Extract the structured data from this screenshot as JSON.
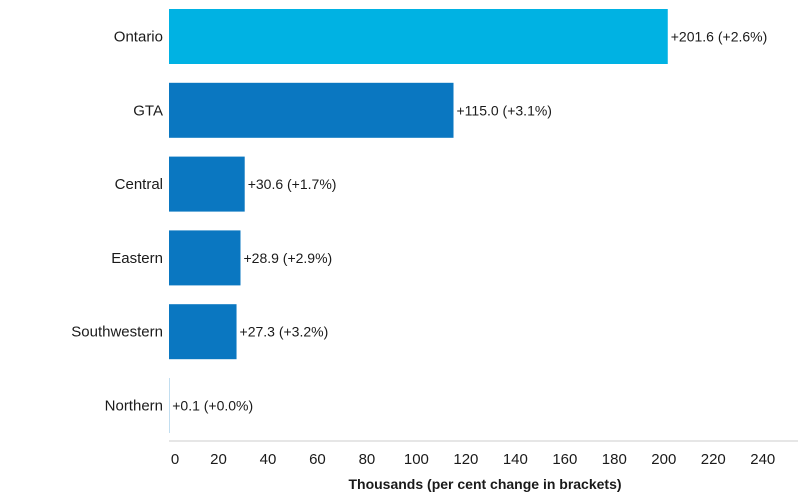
{
  "chart_data": {
    "type": "bar",
    "orientation": "horizontal",
    "categories": [
      "Ontario",
      "GTA",
      "Central",
      "Eastern",
      "Southwestern",
      "Northern"
    ],
    "values": [
      201.6,
      115.0,
      30.6,
      28.9,
      27.3,
      0.1
    ],
    "value_labels": [
      "+201.6 (+2.6%)",
      "+115.0 (+3.1%)",
      "+30.6 (+1.7%)",
      "+28.9 (+2.9%)",
      "+27.3 (+3.2%)",
      "+0.1 (+0.0%)"
    ],
    "bar_colors": [
      "#00b2e3",
      "#0a77c1",
      "#0a77c1",
      "#0a77c1",
      "#0a77c1",
      "#0a77c1"
    ],
    "xlabel": "Thousands (per cent change in brackets)",
    "xlim": [
      0,
      240
    ],
    "xticks": [
      0,
      20,
      40,
      60,
      80,
      100,
      120,
      140,
      160,
      180,
      200,
      220,
      240
    ],
    "grid": false
  }
}
